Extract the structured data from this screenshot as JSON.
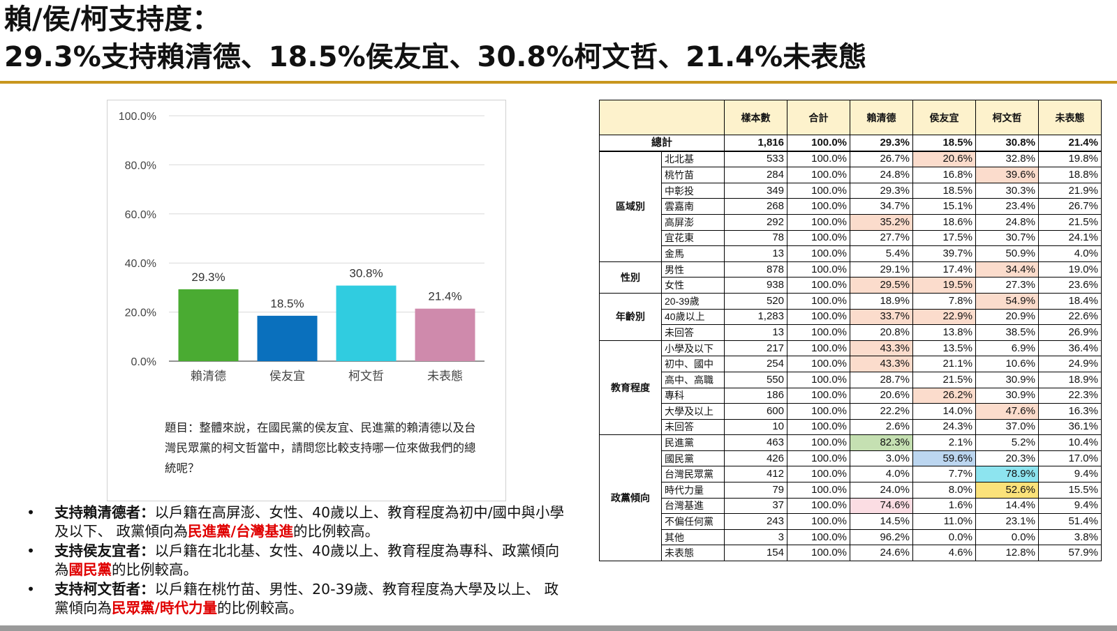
{
  "title": {
    "line1": "賴/侯/柯支持度：",
    "line2": "29.3%支持賴清德、18.5%侯友宜、30.8%柯文哲、21.4%未表態"
  },
  "chart_data": {
    "type": "bar",
    "categories": [
      "賴清德",
      "侯友宜",
      "柯文哲",
      "未表態"
    ],
    "values": [
      29.3,
      18.5,
      30.8,
      21.4
    ],
    "value_labels": [
      "29.3%",
      "18.5%",
      "30.8%",
      "21.4%"
    ],
    "colors": [
      "#4aab32",
      "#0a70bd",
      "#30cce0",
      "#cf8aac"
    ],
    "ylim": [
      0,
      100
    ],
    "yticks": [
      "0.0%",
      "20.0%",
      "40.0%",
      "60.0%",
      "80.0%",
      "100.0%"
    ],
    "ytick_values": [
      0,
      20,
      40,
      60,
      80,
      100
    ],
    "grid": true,
    "title": "",
    "xlabel": "",
    "ylabel": ""
  },
  "question": "題目：整體來說，在國民黨的侯友宜、民進黨的賴清德以及台灣民眾黨的柯文哲當中，請問您比較支持哪一位來做我們的總統呢？",
  "bullets": [
    {
      "dot": "•",
      "lead": "支持賴清德者：",
      "text1": "以戶籍在高屏澎、女性、40歲以上、教育程度為初中/國中與小學及以下、 政黨傾向為",
      "highlight": "民進黨/台灣基進",
      "text2": "的比例較高。"
    },
    {
      "dot": "•",
      "lead": "支持侯友宜者：",
      "text1": "以戶籍在北北基、女性、40歲以上、教育程度為專科、政黨傾向為",
      "highlight": "國民黨",
      "text2": "的比例較高。"
    },
    {
      "dot": "•",
      "lead": "支持柯文哲者：",
      "text1": "以戶籍在桃竹苗、男性、20-39歲、教育程度為大學及以上、 政黨傾向為",
      "highlight": "民眾黨/時代力量",
      "text2": "的比例較高。"
    }
  ],
  "table": {
    "headers": [
      "",
      "樣本數",
      "合計",
      "賴清德",
      "侯友宜",
      "柯文哲",
      "未表態"
    ],
    "total": {
      "label": "總計",
      "values": [
        "1,816",
        "100.0%",
        "29.3%",
        "18.5%",
        "30.8%",
        "21.4%"
      ]
    },
    "highlight_colors": {
      "pink": "#fbdccc",
      "lightpink": "#fbdde3",
      "green": "#c5e0b2",
      "blue": "#bcd6f0",
      "cyan": "#8de4ef",
      "yellow": "#fbe27a"
    },
    "groups": [
      {
        "name": "區域別",
        "rows": [
          {
            "label": "北北基",
            "values": [
              "533",
              "100.0%",
              "26.7%",
              "20.6%",
              "32.8%",
              "19.8%"
            ],
            "hl": {
              "3": "pink"
            }
          },
          {
            "label": "桃竹苗",
            "values": [
              "284",
              "100.0%",
              "24.8%",
              "16.8%",
              "39.6%",
              "18.8%"
            ],
            "hl": {
              "4": "pink"
            }
          },
          {
            "label": "中彰投",
            "values": [
              "349",
              "100.0%",
              "29.3%",
              "18.5%",
              "30.3%",
              "21.9%"
            ],
            "hl": {}
          },
          {
            "label": "雲嘉南",
            "values": [
              "268",
              "100.0%",
              "34.7%",
              "15.1%",
              "23.4%",
              "26.7%"
            ],
            "hl": {}
          },
          {
            "label": "高屏澎",
            "values": [
              "292",
              "100.0%",
              "35.2%",
              "18.6%",
              "24.8%",
              "21.5%"
            ],
            "hl": {
              "2": "pink"
            }
          },
          {
            "label": "宜花東",
            "values": [
              "78",
              "100.0%",
              "27.7%",
              "17.5%",
              "30.7%",
              "24.1%"
            ],
            "hl": {}
          },
          {
            "label": "金馬",
            "values": [
              "13",
              "100.0%",
              "5.4%",
              "39.7%",
              "50.9%",
              "4.0%"
            ],
            "hl": {}
          }
        ]
      },
      {
        "name": "性別",
        "rows": [
          {
            "label": "男性",
            "values": [
              "878",
              "100.0%",
              "29.1%",
              "17.4%",
              "34.4%",
              "19.0%"
            ],
            "hl": {
              "4": "pink"
            }
          },
          {
            "label": "女性",
            "values": [
              "938",
              "100.0%",
              "29.5%",
              "19.5%",
              "27.3%",
              "23.6%"
            ],
            "hl": {
              "2": "pink",
              "3": "pink"
            }
          }
        ]
      },
      {
        "name": "年齡別",
        "rows": [
          {
            "label": "20-39歲",
            "values": [
              "520",
              "100.0%",
              "18.9%",
              "7.8%",
              "54.9%",
              "18.4%"
            ],
            "hl": {
              "4": "pink"
            }
          },
          {
            "label": "40歲以上",
            "values": [
              "1,283",
              "100.0%",
              "33.7%",
              "22.9%",
              "20.9%",
              "22.6%"
            ],
            "hl": {
              "2": "pink",
              "3": "pink"
            }
          },
          {
            "label": "未回答",
            "values": [
              "13",
              "100.0%",
              "20.8%",
              "13.8%",
              "38.5%",
              "26.9%"
            ],
            "hl": {}
          }
        ]
      },
      {
        "name": "教育程度",
        "rows": [
          {
            "label": "小學及以下",
            "values": [
              "217",
              "100.0%",
              "43.3%",
              "13.5%",
              "6.9%",
              "36.4%"
            ],
            "hl": {
              "2": "pink"
            }
          },
          {
            "label": "初中、國中",
            "values": [
              "254",
              "100.0%",
              "43.3%",
              "21.1%",
              "10.6%",
              "24.9%"
            ],
            "hl": {
              "2": "pink"
            }
          },
          {
            "label": "高中、高職",
            "values": [
              "550",
              "100.0%",
              "28.7%",
              "21.5%",
              "30.9%",
              "18.9%"
            ],
            "hl": {}
          },
          {
            "label": "專科",
            "values": [
              "186",
              "100.0%",
              "20.6%",
              "26.2%",
              "30.9%",
              "22.3%"
            ],
            "hl": {
              "3": "pink"
            }
          },
          {
            "label": "大學及以上",
            "values": [
              "600",
              "100.0%",
              "22.2%",
              "14.0%",
              "47.6%",
              "16.3%"
            ],
            "hl": {
              "4": "pink"
            }
          },
          {
            "label": "未回答",
            "values": [
              "10",
              "100.0%",
              "2.6%",
              "24.3%",
              "37.0%",
              "36.1%"
            ],
            "hl": {}
          }
        ]
      },
      {
        "name": "政黨傾向",
        "rows": [
          {
            "label": "民進黨",
            "values": [
              "463",
              "100.0%",
              "82.3%",
              "2.1%",
              "5.2%",
              "10.4%"
            ],
            "hl": {
              "2": "green"
            }
          },
          {
            "label": "國民黨",
            "values": [
              "426",
              "100.0%",
              "3.0%",
              "59.6%",
              "20.3%",
              "17.0%"
            ],
            "hl": {
              "3": "blue"
            }
          },
          {
            "label": "台灣民眾黨",
            "values": [
              "412",
              "100.0%",
              "4.0%",
              "7.7%",
              "78.9%",
              "9.4%"
            ],
            "hl": {
              "4": "cyan"
            }
          },
          {
            "label": "時代力量",
            "values": [
              "79",
              "100.0%",
              "24.0%",
              "8.0%",
              "52.6%",
              "15.5%"
            ],
            "hl": {
              "4": "yellow"
            }
          },
          {
            "label": "台灣基進",
            "values": [
              "37",
              "100.0%",
              "74.6%",
              "1.6%",
              "14.4%",
              "9.4%"
            ],
            "hl": {
              "2": "lightpink"
            }
          },
          {
            "label": "不偏任何黨",
            "values": [
              "243",
              "100.0%",
              "14.5%",
              "11.0%",
              "23.1%",
              "51.4%"
            ],
            "hl": {}
          },
          {
            "label": "其他",
            "values": [
              "3",
              "100.0%",
              "96.2%",
              "0.0%",
              "0.0%",
              "3.8%"
            ],
            "hl": {}
          },
          {
            "label": "未表態",
            "values": [
              "154",
              "100.0%",
              "24.6%",
              "4.6%",
              "12.8%",
              "57.9%"
            ],
            "hl": {}
          }
        ]
      }
    ]
  }
}
